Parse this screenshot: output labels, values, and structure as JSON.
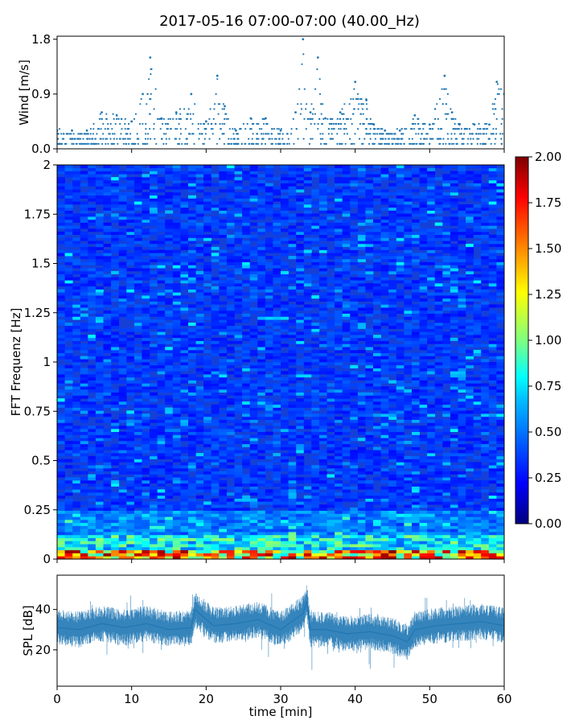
{
  "chart_data": [
    {
      "id": "wind",
      "type": "scatter",
      "title": "2017-05-16 07:00-07:00 (40.00_Hz)",
      "xlabel": "",
      "ylabel": "Wind [m/s]",
      "xlim": [
        0,
        60
      ],
      "ylim": [
        0,
        1.85
      ],
      "yticks": [
        0.0,
        0.9,
        1.8
      ],
      "ytick_labels": [
        "0.0",
        "0.9",
        "1.8"
      ],
      "xticks": [
        0,
        10,
        20,
        30,
        40,
        50,
        60
      ],
      "color": "#1f77b4",
      "x": [
        0,
        2,
        4,
        6,
        8,
        10,
        11.5,
        12.5,
        14,
        16,
        18,
        20,
        21.5,
        22.5,
        24,
        26,
        28,
        30,
        32,
        33,
        34,
        35,
        36,
        38,
        40,
        41.5,
        42.5,
        44,
        46,
        48,
        50,
        52,
        53,
        54,
        56,
        58,
        59,
        60
      ],
      "y": [
        0.3,
        0.3,
        0.3,
        0.6,
        0.55,
        0.45,
        0.9,
        1.5,
        0.5,
        0.6,
        0.9,
        0.45,
        1.2,
        0.7,
        0.3,
        0.5,
        0.5,
        0.3,
        0.6,
        1.8,
        0.6,
        1.5,
        0.5,
        0.6,
        1.1,
        0.8,
        0.4,
        0.3,
        0.3,
        0.55,
        0.4,
        1.2,
        0.6,
        0.4,
        0.4,
        0.4,
        1.1,
        0.9
      ]
    },
    {
      "id": "spectrogram",
      "type": "heatmap",
      "ylabel": "FFT Frequenz [Hz]",
      "xlim": [
        0,
        60
      ],
      "ylim": [
        0,
        2
      ],
      "yticks": [
        0,
        0.25,
        0.5,
        0.75,
        1,
        1.25,
        1.5,
        1.75,
        2
      ],
      "ytick_labels": [
        "0",
        "0.25",
        "0.5",
        "0.75",
        "1",
        "1.25",
        "1.5",
        "1.75",
        "2"
      ],
      "colormap": "jet",
      "clim": [
        0,
        2
      ],
      "colorbar_ticks": [
        "0.00",
        "0.25",
        "0.50",
        "0.75",
        "1.00",
        "1.25",
        "1.50",
        "1.75",
        "2.00"
      ],
      "colorbar_colors": [
        "#00007f",
        "#0000ff",
        "#007fff",
        "#00ffff",
        "#7fff7f",
        "#ffff00",
        "#ff7f00",
        "#ff0000",
        "#7f0000"
      ]
    },
    {
      "id": "spl",
      "type": "line",
      "xlabel": "time [min]",
      "ylabel": "SPL [dB]",
      "xlim": [
        0,
        60
      ],
      "ylim": [
        2,
        57
      ],
      "yticks": [
        20,
        40
      ],
      "ytick_labels": [
        "20",
        "40"
      ],
      "xticks": [
        0,
        10,
        20,
        30,
        40,
        50,
        60
      ],
      "xtick_labels": [
        "0",
        "10",
        "20",
        "30",
        "40",
        "50",
        "60"
      ],
      "color": "#1f77b4",
      "x": [
        0,
        3,
        6,
        9,
        12,
        15,
        18,
        18.5,
        21,
        24,
        27,
        30,
        33,
        33.5,
        34,
        36,
        39,
        42,
        45,
        47,
        48,
        51,
        54,
        57,
        60
      ],
      "y": [
        31,
        30,
        33,
        31,
        33,
        30,
        31,
        40,
        32,
        33,
        35,
        30,
        38,
        44,
        30,
        30,
        28,
        29,
        27,
        24,
        30,
        32,
        33,
        34,
        32
      ]
    }
  ]
}
